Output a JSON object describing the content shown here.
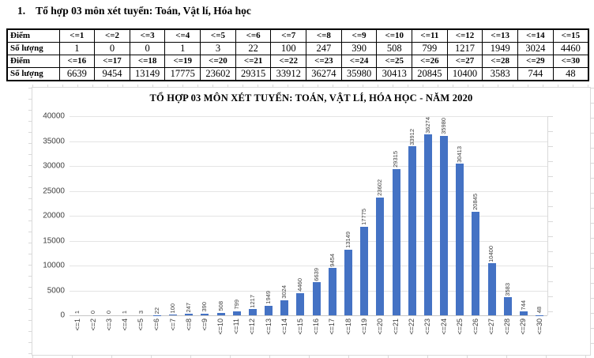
{
  "heading": {
    "number": "1.",
    "text": "Tổ hợp 03 môn xét tuyển: Toán, Vật lí, Hóa học"
  },
  "table": {
    "score_row_label": "Điểm",
    "count_row_label": "Số lượng",
    "upper": {
      "scores": [
        "<=1",
        "<=2",
        "<=3",
        "<=4",
        "<=5",
        "<=6",
        "<=7",
        "<=8",
        "<=9",
        "<=10",
        "<=11",
        "<=12",
        "<=13",
        "<=14",
        "<=15"
      ],
      "counts": [
        "1",
        "0",
        "0",
        "1",
        "3",
        "22",
        "100",
        "247",
        "390",
        "508",
        "799",
        "1217",
        "1949",
        "3024",
        "4460"
      ]
    },
    "lower": {
      "scores": [
        "<=16",
        "<=17",
        "<=18",
        "<=19",
        "<=20",
        "<=21",
        "<=22",
        "<=23",
        "<=24",
        "<=25",
        "<=26",
        "<=27",
        "<=28",
        "<=29",
        "<=30"
      ],
      "counts": [
        "6639",
        "9454",
        "13149",
        "17775",
        "23602",
        "29315",
        "33912",
        "36274",
        "35980",
        "30413",
        "20845",
        "10400",
        "3583",
        "744",
        "48"
      ]
    }
  },
  "chart_data": {
    "type": "bar",
    "title": "TỔ HỢP 03 MÔN XÉT TUYỂN: TOÁN, VẬT LÍ, HÓA HỌC - NĂM 2020",
    "categories": [
      "<=1",
      "<=2",
      "<=3",
      "<=4",
      "<=5",
      "<=6",
      "<=7",
      "<=8",
      "<=9",
      "<=10",
      "<=11",
      "<=12",
      "<=13",
      "<=14",
      "<=15",
      "<=16",
      "<=17",
      "<=18",
      "<=19",
      "<=20",
      "<=21",
      "<=22",
      "<=23",
      "<=24",
      "<=25",
      "<=26",
      "<=27",
      "<=28",
      "<=29",
      "<=30"
    ],
    "values": [
      1,
      0,
      0,
      1,
      3,
      22,
      100,
      247,
      390,
      508,
      799,
      1217,
      1949,
      3024,
      4460,
      6639,
      9454,
      13149,
      17775,
      23602,
      29315,
      33912,
      36274,
      35980,
      30413,
      20845,
      10400,
      3583,
      744,
      48
    ],
    "xlabel": "",
    "ylabel": "",
    "ylim": [
      0,
      40000
    ],
    "yticks": [
      0,
      5000,
      10000,
      15000,
      20000,
      25000,
      30000,
      35000,
      40000
    ],
    "grid": true,
    "legend": false,
    "data_labels_rotation": -90,
    "x_tick_rotation": -90,
    "bar_color": "#4472C4",
    "gridline_color": "#e4e4e4",
    "axis_label_color": "#3f3f3f"
  }
}
